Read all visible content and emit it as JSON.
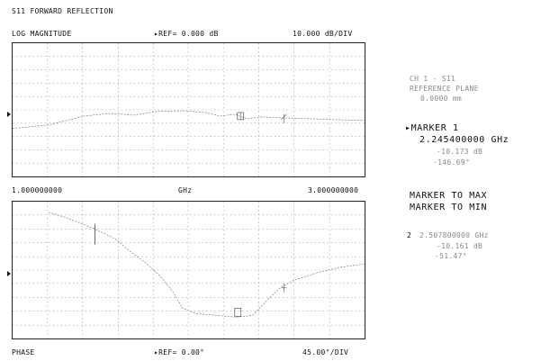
{
  "title": "S11 FORWARD REFLECTION",
  "top_trace": {
    "format": "LOG MAGNITUDE",
    "reference": "REF= 0.000 dB",
    "scale": "10.000 dB/DIV"
  },
  "frequency_axis": {
    "start": "1.000000000",
    "unit": "GHz",
    "stop": "3.000000000"
  },
  "bottom_trace": {
    "format": "PHASE",
    "reference": "REF= 0.00°",
    "scale": "45.00°/DIV"
  },
  "channel_info": {
    "channel": "CH 1 - S11",
    "reference_plane_label": "REFERENCE PLANE",
    "reference_plane_value": "0.0000 mm"
  },
  "marker1": {
    "label": "MARKER 1",
    "frequency": "2.245400000 GHz",
    "magnitude": "-10.173 dB",
    "phase": "-146.69°"
  },
  "menu": {
    "marker_to_max": "MARKER TO MAX",
    "marker_to_min": "MARKER TO MIN"
  },
  "marker2": {
    "index": "2",
    "frequency": "2.507800000 GHz",
    "magnitude": "-10.161 dB",
    "phase": "-51.47°"
  }
}
